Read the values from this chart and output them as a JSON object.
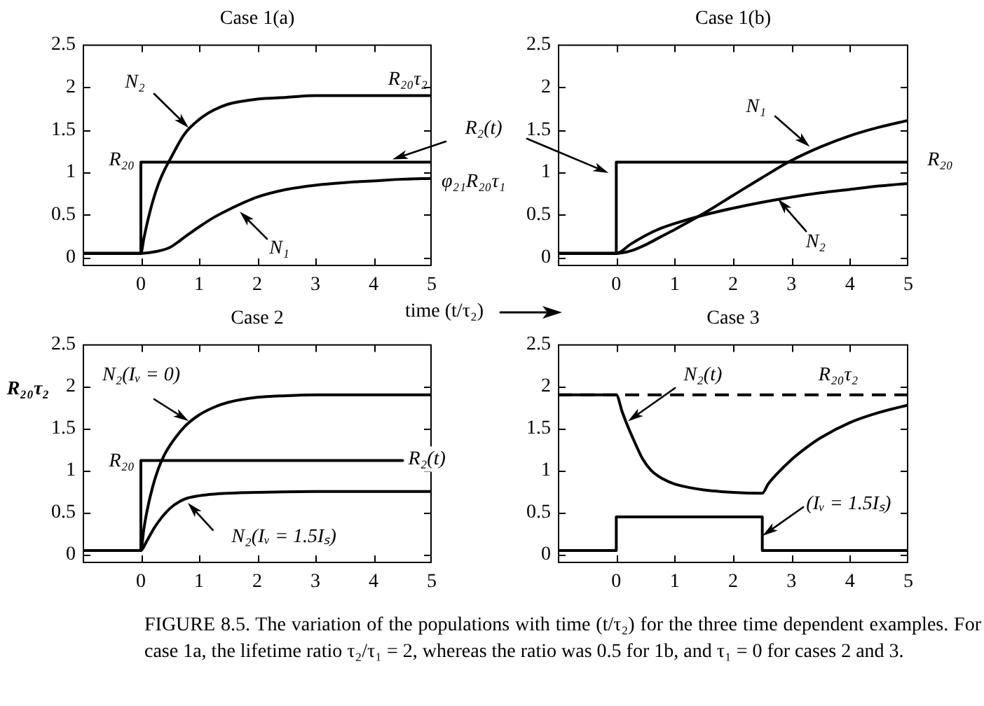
{
  "chart_data": [
    {
      "type": "line",
      "title": "Case 1(a)",
      "xlabel": "time (t/τ₂)",
      "xlim": [
        -1,
        5
      ],
      "xticks": [
        0,
        1,
        2,
        3,
        4,
        5
      ],
      "ylim": [
        -0.1,
        2.5
      ],
      "yticks": [
        0,
        0.5,
        1,
        1.5,
        2,
        2.5
      ],
      "series": [
        {
          "name": "N₂",
          "color": "#000000",
          "x": [
            -1,
            0,
            0.05,
            0.1,
            0.2,
            0.3,
            0.4,
            0.5,
            0.75,
            1,
            1.25,
            1.5,
            2,
            2.5,
            3,
            4,
            5
          ],
          "values": [
            0.05,
            0.05,
            0.22,
            0.38,
            0.65,
            0.86,
            1.02,
            1.15,
            1.45,
            1.62,
            1.73,
            1.8,
            1.86,
            1.88,
            1.9,
            1.9,
            1.9
          ]
        },
        {
          "name": "N₁",
          "color": "#000000",
          "x": [
            -1,
            0,
            0.25,
            0.5,
            0.75,
            1,
            1.25,
            1.5,
            2,
            2.5,
            3,
            3.5,
            4,
            4.5,
            5
          ],
          "values": [
            0.05,
            0.05,
            0.07,
            0.12,
            0.24,
            0.36,
            0.47,
            0.56,
            0.71,
            0.8,
            0.85,
            0.88,
            0.9,
            0.92,
            0.93
          ]
        },
        {
          "name": "R₂(t)",
          "color": "#000000",
          "x": [
            -1,
            0,
            0,
            5
          ],
          "values": [
            0.05,
            0.05,
            1.12,
            1.12
          ]
        }
      ],
      "annotations": [
        "R₂₀τ₂",
        "R₂₀",
        "φ₂₁R₂₀τ₁",
        "FIGURE 8.5. The variation of the populations with time (t/τ₂) for the three time dependent examples. For case 1a, the lifetime ratio τ₂/τ₁ = 2, whereas the ratio was 0.5 for 1b, and τ₁ = 0 for cases 2 and 3."
      ]
    },
    {
      "type": "line",
      "title": "Case 1(b)",
      "xlim": [
        -1,
        5
      ],
      "xticks": [
        0,
        1,
        2,
        3,
        4,
        5
      ],
      "ylim": [
        -0.1,
        2.5
      ],
      "yticks": [
        0,
        0.5,
        1,
        1.5,
        2,
        2.5
      ],
      "series": [
        {
          "color": "#000000",
          "x": [
            -1,
            0,
            0,
            5
          ],
          "values": [
            0.05,
            0.05,
            1.12,
            1.12
          ]
        },
        {
          "name": "N₁",
          "color": "#000000",
          "x": [
            -1,
            0,
            0.25,
            0.5,
            0.75,
            1,
            1.5,
            2,
            2.5,
            3,
            3.5,
            4,
            4.5,
            5
          ],
          "values": [
            0.05,
            0.05,
            0.08,
            0.15,
            0.24,
            0.33,
            0.52,
            0.73,
            0.94,
            1.14,
            1.3,
            1.43,
            1.53,
            1.61
          ]
        },
        {
          "name": "N₂",
          "color": "#000000",
          "x": [
            -1,
            0,
            0.25,
            0.5,
            0.75,
            1,
            1.5,
            2,
            2.5,
            3,
            3.5,
            4,
            4.5,
            5
          ],
          "values": [
            0.05,
            0.05,
            0.16,
            0.26,
            0.34,
            0.4,
            0.5,
            0.58,
            0.65,
            0.71,
            0.76,
            0.8,
            0.84,
            0.87
          ]
        }
      ],
      "annotations": [
        "R₂₀"
      ]
    },
    {
      "type": "line",
      "title": "Case 2",
      "ylabel": "R₂₀τ₂",
      "xlim": [
        -1,
        5
      ],
      "xticks": [
        0,
        1,
        2,
        3,
        4,
        5
      ],
      "ylim": [
        -0.1,
        2.5
      ],
      "yticks": [
        0,
        0.5,
        1,
        1.5,
        2,
        2.5
      ],
      "series": [
        {
          "name": "N₂(Iᵥ = 0)",
          "color": "#000000",
          "x": [
            -1,
            0,
            0.05,
            0.1,
            0.2,
            0.3,
            0.4,
            0.5,
            0.75,
            1,
            1.25,
            1.5,
            2,
            2.5,
            3,
            4,
            5
          ],
          "values": [
            0.05,
            0.05,
            0.3,
            0.5,
            0.8,
            1.02,
            1.18,
            1.3,
            1.52,
            1.66,
            1.75,
            1.81,
            1.87,
            1.89,
            1.9,
            1.9,
            1.9
          ]
        },
        {
          "name": "R₂(t)",
          "color": "#000000",
          "x": [
            -1,
            0,
            0,
            4.5
          ],
          "values": [
            0.05,
            0.05,
            1.12,
            1.12
          ]
        },
        {
          "name": "N₂(Iᵥ = 1.5Iₛ)",
          "color": "#000000",
          "x": [
            -1,
            0,
            0.1,
            0.25,
            0.5,
            0.75,
            1,
            1.25,
            1.5,
            2,
            3,
            4,
            5
          ],
          "values": [
            0.05,
            0.05,
            0.16,
            0.34,
            0.55,
            0.66,
            0.7,
            0.72,
            0.73,
            0.74,
            0.75,
            0.75,
            0.75
          ]
        }
      ],
      "annotations": [
        "R₂₀"
      ]
    },
    {
      "type": "line",
      "title": "Case 3",
      "xlim": [
        -1,
        5
      ],
      "xticks": [
        0,
        1,
        2,
        3,
        4,
        5
      ],
      "ylim": [
        -0.1,
        2.5
      ],
      "yticks": [
        0,
        0.5,
        1,
        1.5,
        2,
        2.5
      ],
      "series": [
        {
          "name": "N₂(t)",
          "color": "#000000",
          "x": [
            -1,
            0,
            0.1,
            0.2,
            0.3,
            0.45,
            0.6,
            0.8,
            1,
            1.5,
            2,
            2.5,
            2.6,
            2.75,
            3,
            3.25,
            3.5,
            4,
            4.5,
            5
          ],
          "values": [
            1.9,
            1.9,
            1.7,
            1.52,
            1.36,
            1.14,
            1.0,
            0.9,
            0.84,
            0.77,
            0.74,
            0.73,
            0.84,
            0.96,
            1.13,
            1.27,
            1.39,
            1.57,
            1.69,
            1.78
          ]
        },
        {
          "name": "(Iᵥ = 1.5Iₛ)",
          "color": "#000000",
          "x": [
            -1,
            0,
            0,
            2.5,
            2.5,
            5
          ],
          "values": [
            0.05,
            0.05,
            0.45,
            0.45,
            0.05,
            0.05
          ]
        }
      ],
      "ref_lines": [
        {
          "axis": "y",
          "value": 1.9,
          "label": "R₂₀τ₂",
          "line_style": "dashed",
          "color": "#000000"
        }
      ]
    }
  ]
}
